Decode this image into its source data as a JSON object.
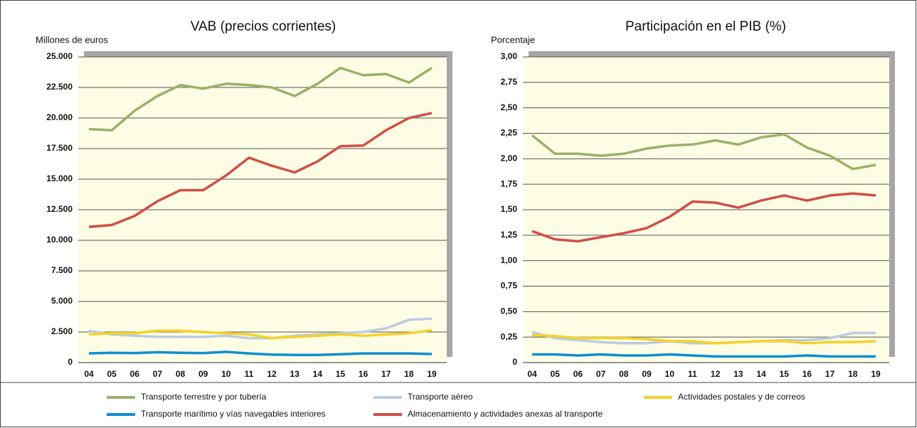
{
  "legend": [
    {
      "name": "Transporte terrestre y por tubería",
      "color": "#9bb06a"
    },
    {
      "name": "Transporte aéreo",
      "color": "#b9cde0"
    },
    {
      "name": "Actividades postales y de correos",
      "color": "#f4d22a"
    },
    {
      "name": "Transporte marítimo y vías navegables interiores",
      "color": "#0d8fd0"
    },
    {
      "name": "Almacenamiento y actividades anexas al transporte",
      "color": "#cf4f48"
    }
  ],
  "chart_data": [
    {
      "type": "line",
      "title": "VAB (precios corrientes)",
      "y_label": "Millones de euros",
      "categories": [
        "04",
        "05",
        "06",
        "07",
        "08",
        "09",
        "10",
        "11",
        "12",
        "13",
        "14",
        "15",
        "16",
        "17",
        "18",
        "19"
      ],
      "ylim": [
        0,
        25000
      ],
      "yticks": [
        0,
        {
          "value": 2500,
          "label": "2.500"
        },
        {
          "value": 5000,
          "label": "5.000"
        },
        {
          "value": 7500,
          "label": "7.500"
        },
        {
          "value": 10000,
          "label": "10.000"
        },
        {
          "value": 12500,
          "label": "12.500"
        },
        {
          "value": 15000,
          "label": "15.000"
        },
        {
          "value": 17500,
          "label": "17.500"
        },
        {
          "value": 20000,
          "label": "20.000"
        },
        {
          "value": 22500,
          "label": "22.500"
        },
        {
          "value": 25000,
          "label": "25.000"
        }
      ],
      "grid": true,
      "series": [
        {
          "values": [
            19100,
            19000,
            20600,
            21800,
            22700,
            22400,
            22800,
            22700,
            22500,
            21800,
            22800,
            24100,
            23500,
            23600,
            22900,
            24100
          ]
        },
        {
          "values": [
            2600,
            2300,
            2200,
            2100,
            2100,
            2100,
            2200,
            2000,
            2000,
            2200,
            2300,
            2400,
            2500,
            2800,
            3500,
            3600
          ]
        },
        {
          "values": [
            2300,
            2400,
            2400,
            2600,
            2600,
            2500,
            2400,
            2300,
            2000,
            2100,
            2200,
            2300,
            2200,
            2300,
            2400,
            2650
          ]
        },
        {
          "values": [
            750,
            800,
            780,
            850,
            800,
            780,
            880,
            750,
            650,
            620,
            620,
            680,
            750,
            750,
            750,
            700
          ]
        },
        {
          "values": [
            11100,
            11250,
            12000,
            13200,
            14100,
            14100,
            15300,
            16750,
            16100,
            15550,
            16450,
            17700,
            17750,
            19000,
            20000,
            20400
          ]
        }
      ]
    },
    {
      "type": "line",
      "title": "Participación en el PIB (%)",
      "y_label": "Porcentaje",
      "categories": [
        "04",
        "05",
        "06",
        "07",
        "08",
        "09",
        "10",
        "11",
        "12",
        "13",
        "14",
        "15",
        "16",
        "17",
        "18",
        "19"
      ],
      "ylim": [
        0,
        3
      ],
      "yticks": [
        0,
        {
          "value": 0.25,
          "label": "0,25"
        },
        {
          "value": 0.5,
          "label": "0,50"
        },
        {
          "value": 0.75,
          "label": "0,75"
        },
        {
          "value": 1,
          "label": "1,00"
        },
        {
          "value": 1.25,
          "label": "1,25"
        },
        {
          "value": 1.5,
          "label": "1,50"
        },
        {
          "value": 1.75,
          "label": "1,75"
        },
        {
          "value": 2,
          "label": "2,00"
        },
        {
          "value": 2.25,
          "label": "2,25"
        },
        {
          "value": 2.5,
          "label": "2,50"
        },
        {
          "value": 2.75,
          "label": "2,75"
        },
        {
          "value": 3,
          "label": "3,00"
        }
      ],
      "grid": true,
      "series": [
        {
          "values": [
            2.23,
            2.05,
            2.05,
            2.03,
            2.05,
            2.1,
            2.13,
            2.14,
            2.18,
            2.14,
            2.21,
            2.24,
            2.11,
            2.03,
            1.9,
            1.94
          ]
        },
        {
          "values": [
            0.3,
            0.24,
            0.22,
            0.2,
            0.19,
            0.19,
            0.21,
            0.19,
            0.19,
            0.2,
            0.21,
            0.22,
            0.22,
            0.24,
            0.29,
            0.29
          ]
        },
        {
          "values": [
            0.27,
            0.26,
            0.24,
            0.24,
            0.24,
            0.23,
            0.21,
            0.21,
            0.19,
            0.2,
            0.21,
            0.21,
            0.19,
            0.2,
            0.2,
            0.21
          ]
        },
        {
          "values": [
            0.08,
            0.08,
            0.07,
            0.08,
            0.07,
            0.07,
            0.08,
            0.07,
            0.06,
            0.06,
            0.06,
            0.06,
            0.07,
            0.06,
            0.06,
            0.06
          ]
        },
        {
          "values": [
            1.29,
            1.21,
            1.19,
            1.23,
            1.27,
            1.32,
            1.43,
            1.58,
            1.57,
            1.52,
            1.59,
            1.64,
            1.59,
            1.64,
            1.66,
            1.64
          ]
        }
      ]
    }
  ]
}
